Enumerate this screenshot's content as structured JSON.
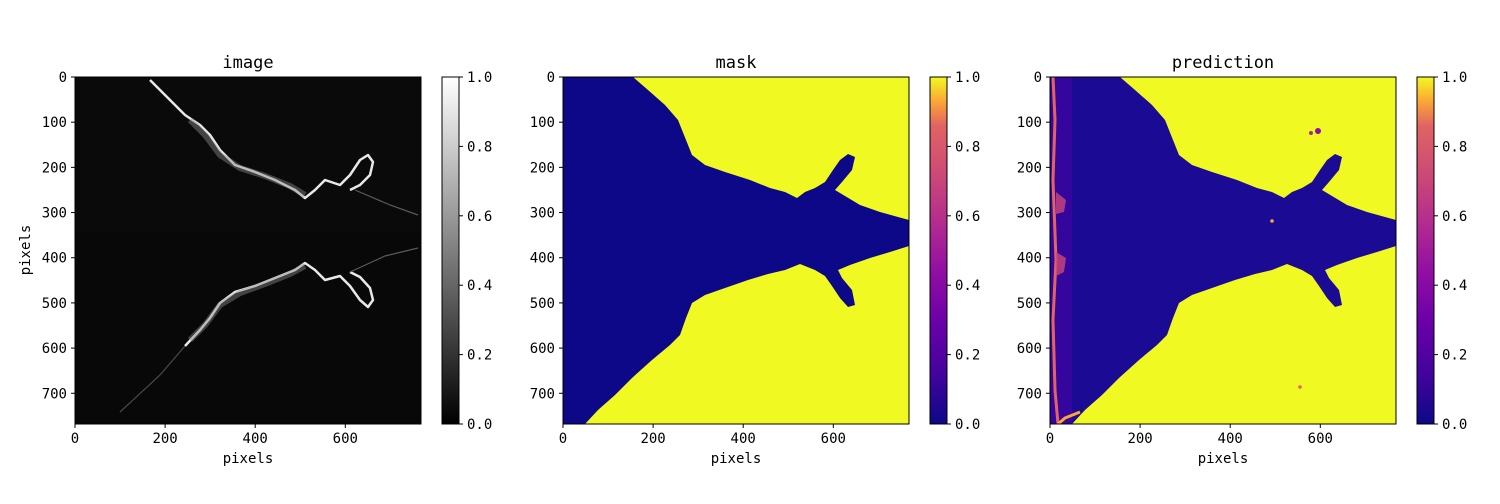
{
  "chart_data": [
    {
      "type": "heatmap",
      "title": "image",
      "xlabel": "pixels",
      "ylabel": "pixels",
      "colormap": "gray",
      "xlim": [
        0,
        768
      ],
      "ylim": [
        768,
        0
      ],
      "x_ticks": [
        0,
        200,
        400,
        600
      ],
      "y_ticks": [
        0,
        100,
        200,
        300,
        400,
        500,
        600,
        700
      ],
      "colorbar": {
        "min": 0.0,
        "max": 1.0,
        "ticks": [
          "0.0",
          "0.2",
          "0.4",
          "0.6",
          "0.8",
          "1.0"
        ]
      }
    },
    {
      "type": "heatmap",
      "title": "mask",
      "xlabel": "pixels",
      "ylabel": "",
      "colormap": "plasma",
      "xlim": [
        0,
        768
      ],
      "ylim": [
        768,
        0
      ],
      "x_ticks": [
        0,
        200,
        400,
        600
      ],
      "y_ticks": [
        0,
        100,
        200,
        300,
        400,
        500,
        600,
        700
      ],
      "colorbar": {
        "min": 0.0,
        "max": 1.0,
        "ticks": [
          "0.0",
          "0.2",
          "0.4",
          "0.6",
          "0.8",
          "1.0"
        ]
      }
    },
    {
      "type": "heatmap",
      "title": "prediction",
      "xlabel": "pixels",
      "ylabel": "",
      "colormap": "plasma",
      "xlim": [
        0,
        768
      ],
      "ylim": [
        768,
        0
      ],
      "x_ticks": [
        0,
        200,
        400,
        600
      ],
      "y_ticks": [
        0,
        100,
        200,
        300,
        400,
        500,
        600,
        700
      ],
      "colorbar": {
        "min": 0.0,
        "max": 1.0,
        "ticks": [
          "0.0",
          "0.2",
          "0.4",
          "0.6",
          "0.8",
          "1.0"
        ]
      }
    }
  ],
  "colors": {
    "background_dark_gray": "#0a0a0a",
    "plasma_low": "#0d0887",
    "plasma_high": "#f0f921",
    "edge_white": "#f2f2f2"
  }
}
